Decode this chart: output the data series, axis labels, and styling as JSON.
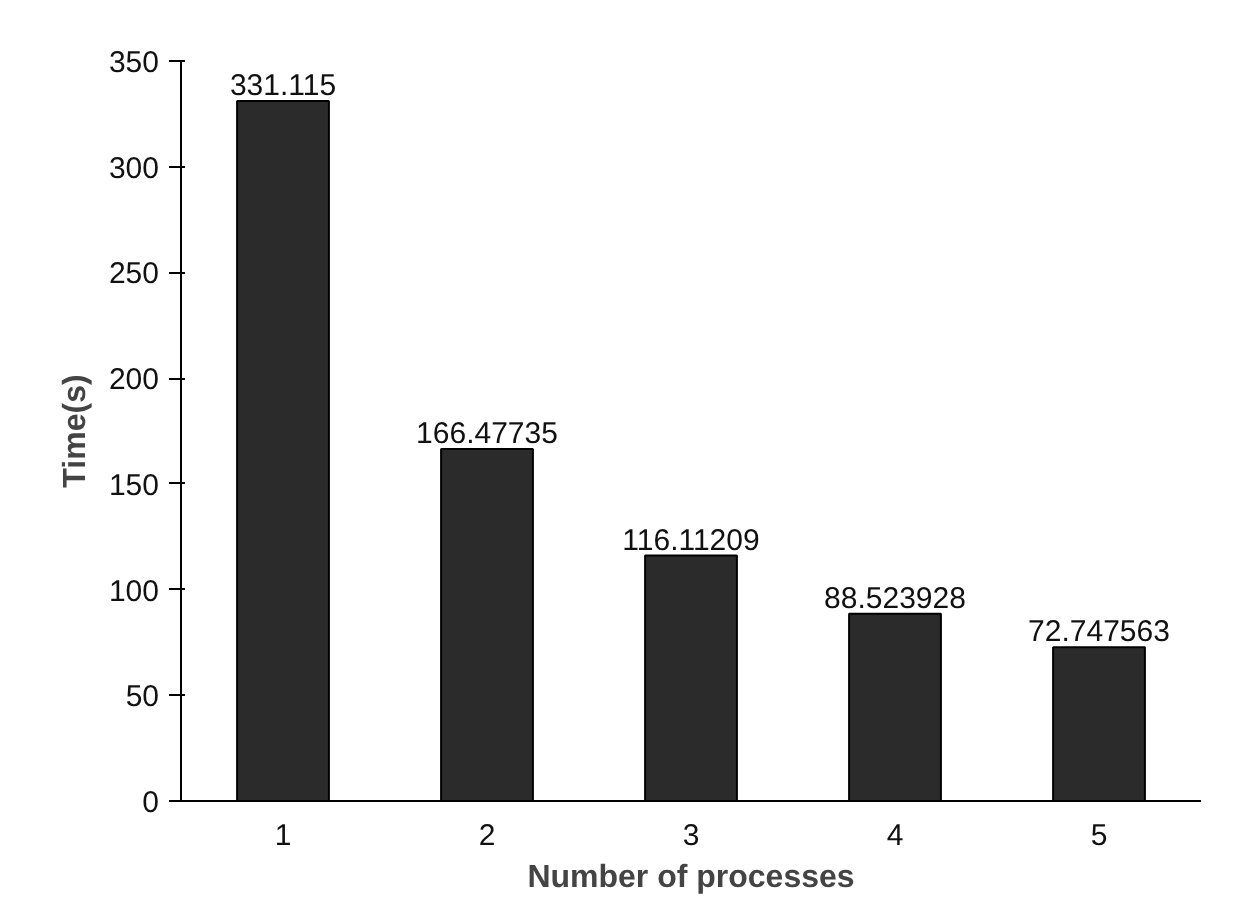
{
  "chart_data": {
    "type": "bar",
    "xlabel": "Number of processes",
    "ylabel": "Time(s)",
    "categories": [
      "1",
      "2",
      "3",
      "4",
      "5"
    ],
    "values": [
      331.115,
      166.47735,
      116.11209,
      88.523928,
      72.747563
    ],
    "color": "#2b2b2b",
    "ylim": [
      0,
      350
    ],
    "yticks": [
      0,
      50,
      100,
      150,
      200,
      250,
      300,
      350
    ],
    "data_labels": true,
    "grid": false
  }
}
